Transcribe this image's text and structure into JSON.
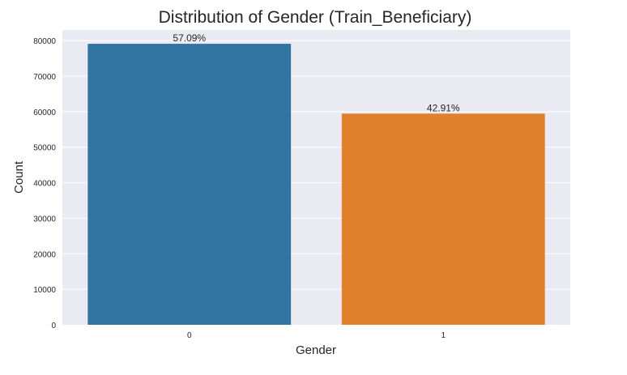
{
  "chart_data": {
    "type": "bar",
    "title": "Distribution of  Gender (Train_Beneficiary)",
    "xlabel": "Gender",
    "ylabel": "Count",
    "categories": [
      "0",
      "1"
    ],
    "values": [
      79106,
      59450
    ],
    "data_labels": [
      "57.09%",
      "42.91%"
    ],
    "colors": [
      "#3274a1",
      "#e1812c"
    ],
    "ylim": [
      0,
      83000
    ],
    "yticks": [
      0,
      10000,
      20000,
      30000,
      40000,
      50000,
      60000,
      70000,
      80000
    ],
    "ytick_labels": [
      "0",
      "10000",
      "20000",
      "30000",
      "40000",
      "50000",
      "60000",
      "70000",
      "80000"
    ],
    "grid": true,
    "legend": "none",
    "background": "#eaeaf2"
  }
}
